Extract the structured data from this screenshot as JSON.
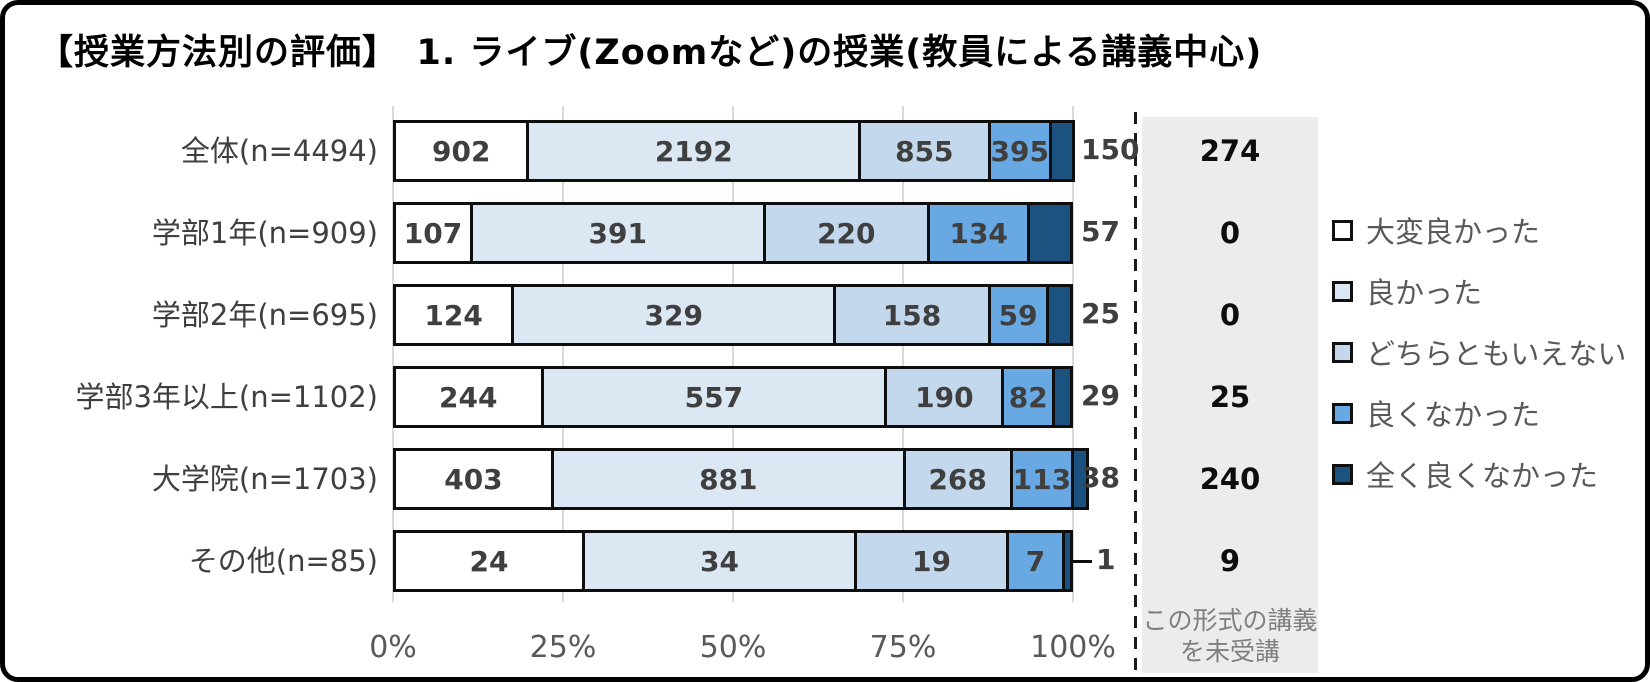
{
  "title": "【授業方法別の評価】　1. ライブ(Zoomなど)の授業(教員による講義中心)",
  "colors": {
    "bar_border": "#0e0e0e",
    "gridline": "#d9d9d9",
    "axis_text": "#595959",
    "value_text": "#3f3f3f",
    "panel_background": "#ececec",
    "panel_caption_text": "#7f7f7f",
    "dashed_divider": "#1a1a1a"
  },
  "chart_data": {
    "type": "bar",
    "subtype": "horizontal-100pct-stacked",
    "title": "【授業方法別の評価】　1. ライブ(Zoomなど)の授業(教員による講義中心)",
    "categories": [
      "全体(n=4494)",
      "学部1年(n=909)",
      "学部2年(n=695)",
      "学部3年以上(n=1102)",
      "大学院(n=1703)",
      "その他(n=85)"
    ],
    "series": [
      {
        "name": "大変良かった",
        "color": "#ffffff",
        "values": [
          902,
          107,
          124,
          244,
          403,
          24
        ]
      },
      {
        "name": "良かった",
        "color": "#dbe8f4",
        "values": [
          2192,
          391,
          329,
          557,
          881,
          34
        ]
      },
      {
        "name": "どちらともいえない",
        "color": "#c3d8ec",
        "values": [
          855,
          220,
          158,
          190,
          268,
          19
        ]
      },
      {
        "name": "良くなかった",
        "color": "#68a9e3",
        "values": [
          395,
          134,
          59,
          82,
          113,
          7
        ]
      },
      {
        "name": "全く良くなかった",
        "color": "#1c5280",
        "values": [
          150,
          57,
          25,
          29,
          38,
          1
        ]
      }
    ],
    "not_attended": {
      "caption_line1": "この形式の講義",
      "caption_line2": "を未受講",
      "values": [
        274,
        0,
        0,
        25,
        240,
        9
      ]
    },
    "x_ticks": [
      "0%",
      "25%",
      "50%",
      "75%",
      "100%"
    ],
    "xlim": [
      0,
      100
    ],
    "grid": true,
    "legend_position": "right",
    "outside_series_index": 4,
    "leader_rows": [
      5
    ]
  }
}
